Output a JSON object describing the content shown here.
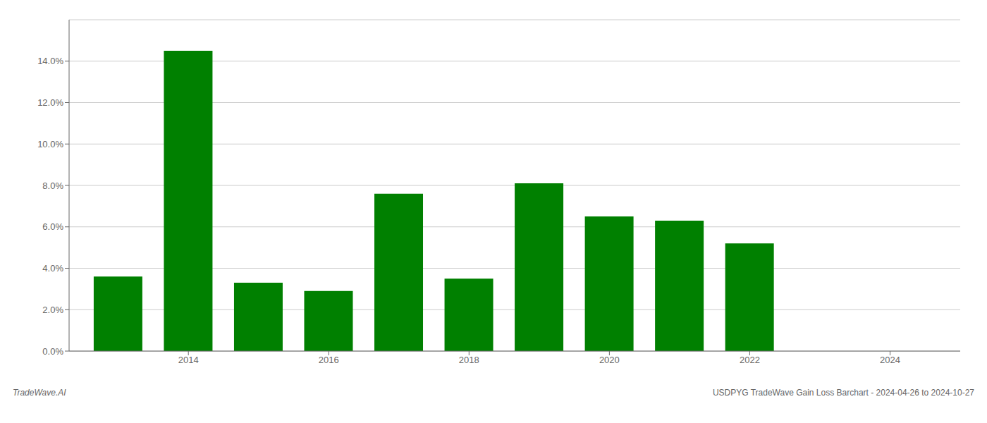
{
  "chart_data": {
    "type": "bar",
    "x": [
      2013,
      2014,
      2015,
      2016,
      2017,
      2018,
      2019,
      2020,
      2021,
      2022,
      2023
    ],
    "values": [
      0.036,
      0.145,
      0.033,
      0.029,
      0.076,
      0.035,
      0.081,
      0.065,
      0.063,
      0.052,
      0.0
    ],
    "color": "#008000",
    "xlim": [
      2012.3,
      2025.0
    ],
    "xticks": [
      2014,
      2016,
      2018,
      2020,
      2022,
      2024
    ],
    "ylim": [
      0,
      0.16
    ],
    "yticks": [
      {
        "value": 0.0,
        "label": "0.0%"
      },
      {
        "value": 0.02,
        "label": "2.0%"
      },
      {
        "value": 0.04,
        "label": "4.0%"
      },
      {
        "value": 0.06,
        "label": "6.0%"
      },
      {
        "value": 0.08,
        "label": "8.0%"
      },
      {
        "value": 0.1,
        "label": "10.0%"
      },
      {
        "value": 0.12,
        "label": "12.0%"
      },
      {
        "value": 0.14,
        "label": "14.0%"
      }
    ],
    "grid": true,
    "annotations": [
      "TradeWave.AI",
      "USDPYG TradeWave Gain Loss Barchart - 2024-04-26 to 2024-10-27"
    ]
  }
}
